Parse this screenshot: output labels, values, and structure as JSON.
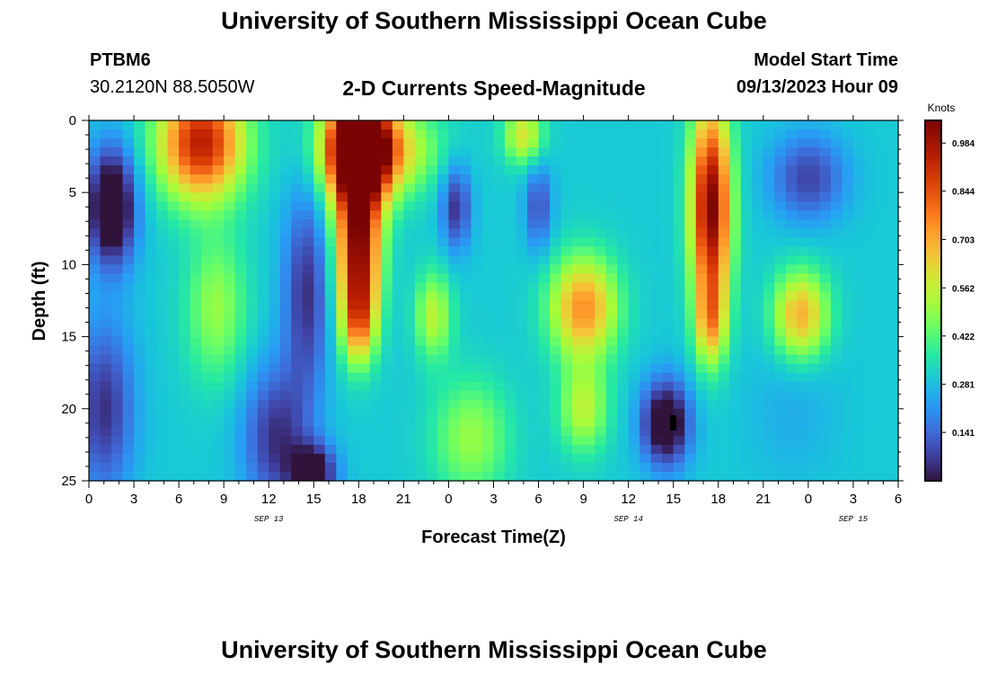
{
  "header": {
    "title": "University of Southern Mississippi Ocean Cube",
    "station": "PTBM6",
    "coords": "30.2120N  88.5050W",
    "product": "2-D Currents Speed-Magnitude",
    "model_label": "Model Start Time",
    "model_time": "09/13/2023 Hour 09",
    "footer_title": "University of Southern Mississippi Ocean Cube"
  },
  "chart_data": {
    "type": "heatmap",
    "xlabel": "Forecast Time(Z)",
    "ylabel": "Depth (ft)",
    "x_ticks": [
      "0",
      "3",
      "6",
      "9",
      "12",
      "15",
      "18",
      "21",
      "0",
      "3",
      "6",
      "9",
      "12",
      "15",
      "18",
      "21",
      "0",
      "3",
      "6"
    ],
    "x_range_hours": [
      0,
      54
    ],
    "date_labels": [
      {
        "label": "SEP 13",
        "hour": 12
      },
      {
        "label": "SEP 14",
        "hour": 36
      },
      {
        "label": "SEP 15",
        "hour": 51
      }
    ],
    "y_ticks": [
      "0",
      "5",
      "10",
      "15",
      "20",
      "25"
    ],
    "y_range": [
      0,
      25
    ],
    "colorbar": {
      "unit": "Knots",
      "ticks": [
        "0.984",
        "0.844",
        "0.703",
        "0.562",
        "0.422",
        "0.281",
        "0.141"
      ],
      "tick_values": [
        0.984,
        0.844,
        0.703,
        0.562,
        0.422,
        0.281,
        0.141
      ],
      "range": [
        0.0,
        1.05
      ]
    },
    "features": [
      {
        "h": 1.5,
        "d": 6,
        "v": -0.45,
        "sh": 1.6,
        "sd": 4
      },
      {
        "h": 1.0,
        "d": 20,
        "v": -0.25,
        "sh": 2.0,
        "sd": 6
      },
      {
        "h": 7.5,
        "d": 1.5,
        "v": 0.65,
        "sh": 2.8,
        "sd": 4
      },
      {
        "h": 8.5,
        "d": 13,
        "v": 0.2,
        "sh": 2.0,
        "sd": 5
      },
      {
        "h": 12.5,
        "d": 22,
        "v": -0.25,
        "sh": 2.2,
        "sd": 5
      },
      {
        "h": 14.5,
        "d": 12,
        "v": -0.25,
        "sh": 1.5,
        "sd": 7
      },
      {
        "h": 15.0,
        "d": 24.5,
        "v": -0.35,
        "sh": 1.5,
        "sd": 2
      },
      {
        "h": 18.0,
        "d": 2,
        "v": 1.0,
        "sh": 2.0,
        "sd": 4
      },
      {
        "h": 18.0,
        "d": 9,
        "v": 0.7,
        "sh": 1.4,
        "sd": 5
      },
      {
        "h": 18.0,
        "d": 14,
        "v": 0.35,
        "sh": 1.1,
        "sd": 3
      },
      {
        "h": 19.5,
        "d": 2,
        "v": 0.35,
        "sh": 3.5,
        "sd": 3
      },
      {
        "h": 24.5,
        "d": 6,
        "v": -0.25,
        "sh": 1.0,
        "sd": 3
      },
      {
        "h": 23.0,
        "d": 13.5,
        "v": 0.25,
        "sh": 1.2,
        "sd": 3
      },
      {
        "h": 25.5,
        "d": 22,
        "v": 0.2,
        "sh": 2.5,
        "sd": 4
      },
      {
        "h": 29.0,
        "d": 1,
        "v": 0.3,
        "sh": 1.3,
        "sd": 2
      },
      {
        "h": 30.0,
        "d": 6,
        "v": -0.2,
        "sh": 0.9,
        "sd": 3
      },
      {
        "h": 33.0,
        "d": 13,
        "v": 0.45,
        "sh": 2.2,
        "sd": 3.5
      },
      {
        "h": 33.0,
        "d": 20,
        "v": 0.25,
        "sh": 1.6,
        "sd": 3
      },
      {
        "h": 38.5,
        "d": 21,
        "v": -0.4,
        "sh": 1.6,
        "sd": 3
      },
      {
        "h": 41.5,
        "d": 6,
        "v": 0.75,
        "sh": 1.3,
        "sd": 7
      },
      {
        "h": 41.5,
        "d": 14,
        "v": 0.3,
        "sh": 1.0,
        "sd": 3
      },
      {
        "h": 47.5,
        "d": 13.5,
        "v": 0.4,
        "sh": 1.8,
        "sd": 3
      },
      {
        "h": 48.0,
        "d": 4,
        "v": -0.22,
        "sh": 2.5,
        "sd": 3
      },
      {
        "h": 47.0,
        "d": 20,
        "v": -0.05,
        "sh": 3.0,
        "sd": 5
      }
    ]
  }
}
